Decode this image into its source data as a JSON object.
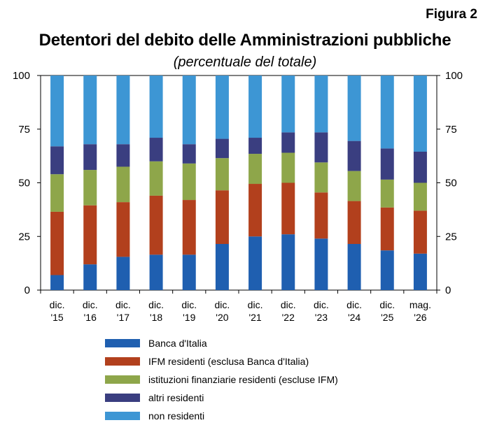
{
  "figure_label": "Figura 2",
  "chart_data": {
    "type": "bar",
    "stacked": true,
    "title": "Detentori del debito delle Amministrazioni pubbliche",
    "subtitle": "(percentuale del totale)",
    "categories": [
      [
        "dic.",
        "'15"
      ],
      [
        "dic.",
        "'16"
      ],
      [
        "dic.",
        "'17"
      ],
      [
        "dic.",
        "'18"
      ],
      [
        "dic.",
        "'19"
      ],
      [
        "dic.",
        "'20"
      ],
      [
        "dic.",
        "'21"
      ],
      [
        "dic.",
        "'22"
      ],
      [
        "dic.",
        "'23"
      ],
      [
        "dic.",
        "'24"
      ],
      [
        "dic.",
        "'25"
      ],
      [
        "mag.",
        "'26"
      ]
    ],
    "ylim": [
      0,
      100
    ],
    "yticks": [
      0,
      25,
      50,
      75,
      100
    ],
    "grid": false,
    "legend_position": "bottom",
    "series": [
      {
        "name": "Banca d'Italia",
        "color": "#1f5fb0",
        "values": [
          7,
          12,
          15.5,
          16.5,
          16.5,
          21.5,
          25,
          26,
          24,
          21.5,
          18.5,
          17
        ]
      },
      {
        "name": "IFM residenti (esclusa Banca d'Italia)",
        "color": "#b2401d",
        "values": [
          29.5,
          27.5,
          25.5,
          27.5,
          25.5,
          25,
          24.5,
          24,
          21.5,
          20,
          20,
          20
        ]
      },
      {
        "name": "istituzioni finanziarie residenti (escluse IFM)",
        "color": "#8ea64a",
        "values": [
          17.5,
          16.5,
          16.5,
          16,
          17,
          15,
          14,
          14,
          14,
          14,
          13,
          13
        ]
      },
      {
        "name": "altri residenti",
        "color": "#3a3e80",
        "values": [
          13,
          12,
          10.5,
          11,
          9,
          9,
          7.5,
          9.5,
          14,
          14,
          14.5,
          14.5
        ]
      },
      {
        "name": "non residenti",
        "color": "#3d96d4",
        "values": [
          33,
          32,
          32,
          29,
          32,
          29.5,
          29,
          26.5,
          26.5,
          30.5,
          34,
          35.5
        ]
      }
    ]
  }
}
